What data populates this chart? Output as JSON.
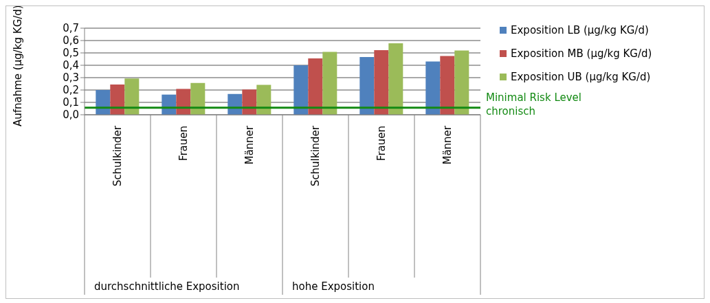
{
  "chart_data": {
    "type": "bar",
    "ylabel": "Aufnahme (µg/kg KG/d)",
    "categories": [
      "Schulkinder",
      "Frauen",
      "Männer",
      "Schulkinder",
      "Frauen",
      "Männer"
    ],
    "series": [
      {
        "name": "Exposition LB (µg/kg KG/d)",
        "color": "#4f81bd",
        "values": [
          0.2,
          0.163,
          0.168,
          0.4,
          0.466,
          0.431
        ]
      },
      {
        "name": "Exposition MB (µg/kg KG/d)",
        "color": "#c0504d",
        "values": [
          0.245,
          0.209,
          0.204,
          0.455,
          0.522,
          0.475
        ]
      },
      {
        "name": "Exposition UB (µg/kg KG/d)",
        "color": "#9bbb59",
        "values": [
          0.293,
          0.257,
          0.241,
          0.509,
          0.578,
          0.52
        ]
      }
    ],
    "ylim": [
      0,
      0.7
    ],
    "yticks": [
      {
        "value": 0,
        "label": "0,0"
      },
      {
        "value": 0.1,
        "label": "0,1"
      },
      {
        "value": 0.2,
        "label": "0,2"
      },
      {
        "value": 0.3,
        "label": "0,3"
      },
      {
        "value": 0.4,
        "label": "0,4"
      },
      {
        "value": 0.5,
        "label": "0,5"
      },
      {
        "value": 0.6,
        "label": "0,6"
      },
      {
        "value": 0.7,
        "label": "0,7"
      }
    ],
    "grid": "y",
    "legend": "right",
    "ref_lines": [
      {
        "axis": "y",
        "value": 0.057,
        "label": "Minimal Risk Level chronisch",
        "color": "#138a13"
      }
    ],
    "annotations": [
      "durchschnittliche Exposition",
      "hohe Exposition"
    ]
  }
}
